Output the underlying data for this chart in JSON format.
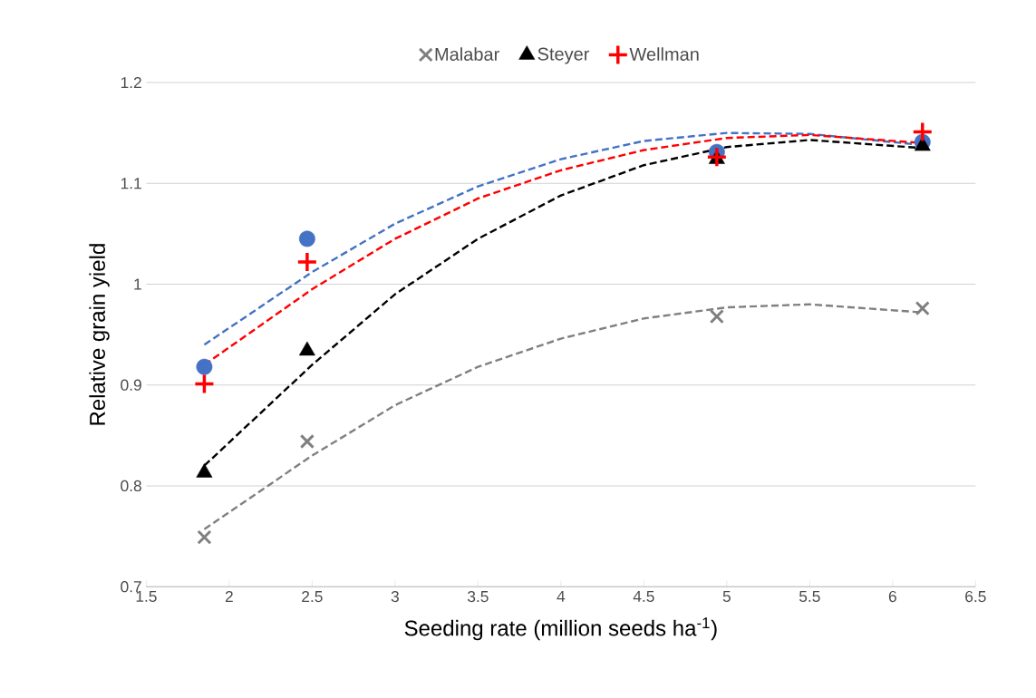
{
  "chart_data": {
    "type": "scatter",
    "xlabel": "Seeding rate (million seeds ha$^{-1}$)",
    "ylabel": "Relative grain yield",
    "xlim": [
      1.5,
      6.5
    ],
    "xticks": [
      1.5,
      2,
      2.5,
      3,
      3.5,
      4,
      4.5,
      5,
      5.5,
      6,
      6.5
    ],
    "ylim": [
      0.7,
      1.2
    ],
    "yticks": [
      0.7,
      0.8,
      0.9,
      1,
      1.1,
      1.2
    ],
    "grid": "y",
    "legend": "top",
    "series": [
      {
        "color": "#4472c4",
        "marker": "circle",
        "x": [
          1.85,
          2.47,
          4.94,
          6.18
        ],
        "values": [
          0.918,
          1.045,
          1.131,
          1.141
        ]
      },
      {
        "name": "Malabar",
        "color": "#7f7f7f",
        "marker": "cross",
        "x": [
          1.85,
          2.47,
          4.94,
          6.18
        ],
        "values": [
          0.749,
          0.844,
          0.968,
          0.976
        ]
      },
      {
        "name": "Steyer",
        "color": "#000000",
        "marker": "triangle",
        "x": [
          1.85,
          2.47,
          4.94,
          6.18
        ],
        "values": [
          0.813,
          0.934,
          1.124,
          1.137
        ]
      },
      {
        "name": "Wellman",
        "color": "#ff0000",
        "marker": "plus",
        "x": [
          1.85,
          2.47,
          4.94,
          6.18
        ],
        "values": [
          0.901,
          1.022,
          1.126,
          1.151
        ]
      },
      {
        "type": "line",
        "line_style": "dashed",
        "marker": "none",
        "color": "#4472c4",
        "x": [
          1.85,
          2.5,
          3,
          3.5,
          4,
          4.5,
          5,
          5.5,
          6.18
        ],
        "values": [
          0.94,
          1.012,
          1.06,
          1.097,
          1.124,
          1.142,
          1.15,
          1.149,
          1.138
        ]
      },
      {
        "type": "line",
        "line_style": "dashed",
        "marker": "none",
        "color": "#808080",
        "x": [
          1.85,
          2.5,
          3,
          3.5,
          4,
          4.5,
          5,
          5.5,
          6.18
        ],
        "values": [
          0.757,
          0.83,
          0.88,
          0.918,
          0.946,
          0.966,
          0.977,
          0.98,
          0.972
        ]
      },
      {
        "type": "line",
        "line_style": "dashed",
        "marker": "none",
        "color": "#000000",
        "x": [
          1.85,
          2.5,
          3,
          3.5,
          4,
          4.5,
          5,
          5.5,
          6.18
        ],
        "values": [
          0.82,
          0.92,
          0.99,
          1.045,
          1.088,
          1.118,
          1.136,
          1.143,
          1.135
        ]
      },
      {
        "type": "line",
        "line_style": "dashed",
        "marker": "none",
        "color": "#ff0000",
        "x": [
          1.85,
          2.5,
          3,
          3.5,
          4,
          4.5,
          5,
          5.5,
          6.18
        ],
        "values": [
          0.92,
          0.995,
          1.045,
          1.085,
          1.113,
          1.133,
          1.145,
          1.148,
          1.14
        ]
      }
    ]
  }
}
